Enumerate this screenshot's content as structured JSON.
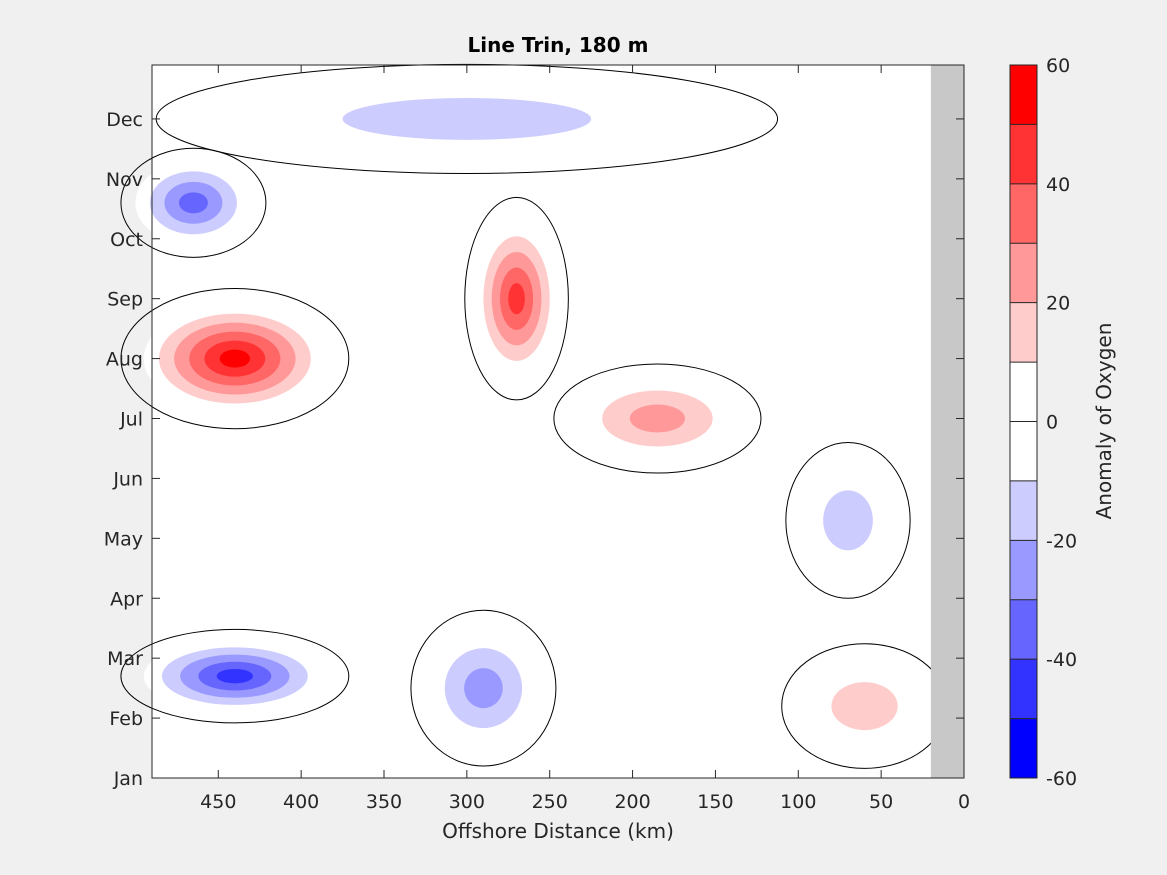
{
  "chart_data": {
    "type": "heatmap",
    "title": "Line Trin, 180 m",
    "xlabel": "Offshore Distance (km)",
    "ylabel": "",
    "xlim": [
      490,
      0
    ],
    "x_ticks": [
      450,
      400,
      350,
      300,
      250,
      200,
      150,
      100,
      50,
      0
    ],
    "y_ticks": [
      "Jan",
      "Feb",
      "Mar",
      "Apr",
      "May",
      "Jun",
      "Jul",
      "Aug",
      "Sep",
      "Oct",
      "Nov",
      "Dec"
    ],
    "y_tick_values": [
      0,
      1,
      2,
      3,
      4,
      5,
      6,
      7,
      8,
      9,
      10,
      11
    ],
    "colorbar": {
      "label": "Anomaly of Oxygen",
      "range": [
        -60,
        60
      ],
      "tick_labels": [
        "60",
        "40",
        "20",
        "0",
        "-20",
        "-40",
        "-60"
      ],
      "tick_values": [
        60,
        40,
        20,
        0,
        -20,
        -40,
        -60
      ],
      "levels": [
        -60,
        -50,
        -40,
        -30,
        -20,
        -10,
        0,
        10,
        20,
        30,
        40,
        50,
        60
      ],
      "colors": [
        "#0000ff",
        "#3333ff",
        "#6666ff",
        "#9999ff",
        "#ccccff",
        "#ffffff",
        "#ffffff",
        "#ffcccc",
        "#ff9999",
        "#ff6666",
        "#ff3333",
        "#ff0000"
      ]
    },
    "no_data_region": {
      "x_range": [
        20,
        0
      ],
      "color": "#c8c8c8"
    },
    "features": [
      {
        "sign": "positive",
        "level": 60,
        "x_center": 440,
        "month": 7.0,
        "rx_km": 55,
        "ry_months": 0.9
      },
      {
        "sign": "positive",
        "level": 50,
        "x_center": 270,
        "month": 8.0,
        "rx_km": 25,
        "ry_months": 1.3
      },
      {
        "sign": "positive",
        "level": 30,
        "x_center": 185,
        "month": 6.0,
        "rx_km": 50,
        "ry_months": 0.7
      },
      {
        "sign": "positive",
        "level": 20,
        "x_center": 60,
        "month": 1.2,
        "rx_km": 40,
        "ry_months": 0.8
      },
      {
        "sign": "negative",
        "level": -50,
        "x_center": 440,
        "month": 1.7,
        "rx_km": 55,
        "ry_months": 0.6
      },
      {
        "sign": "negative",
        "level": -40,
        "x_center": 465,
        "month": 9.6,
        "rx_km": 35,
        "ry_months": 0.7
      },
      {
        "sign": "negative",
        "level": -30,
        "x_center": 290,
        "month": 1.5,
        "rx_km": 35,
        "ry_months": 1.0
      },
      {
        "sign": "negative",
        "level": -20,
        "x_center": 70,
        "month": 4.3,
        "rx_km": 30,
        "ry_months": 1.0
      },
      {
        "sign": "negative",
        "level": -20,
        "x_center": 300,
        "month": 11.0,
        "rx_km": 150,
        "ry_months": 0.7
      }
    ]
  }
}
